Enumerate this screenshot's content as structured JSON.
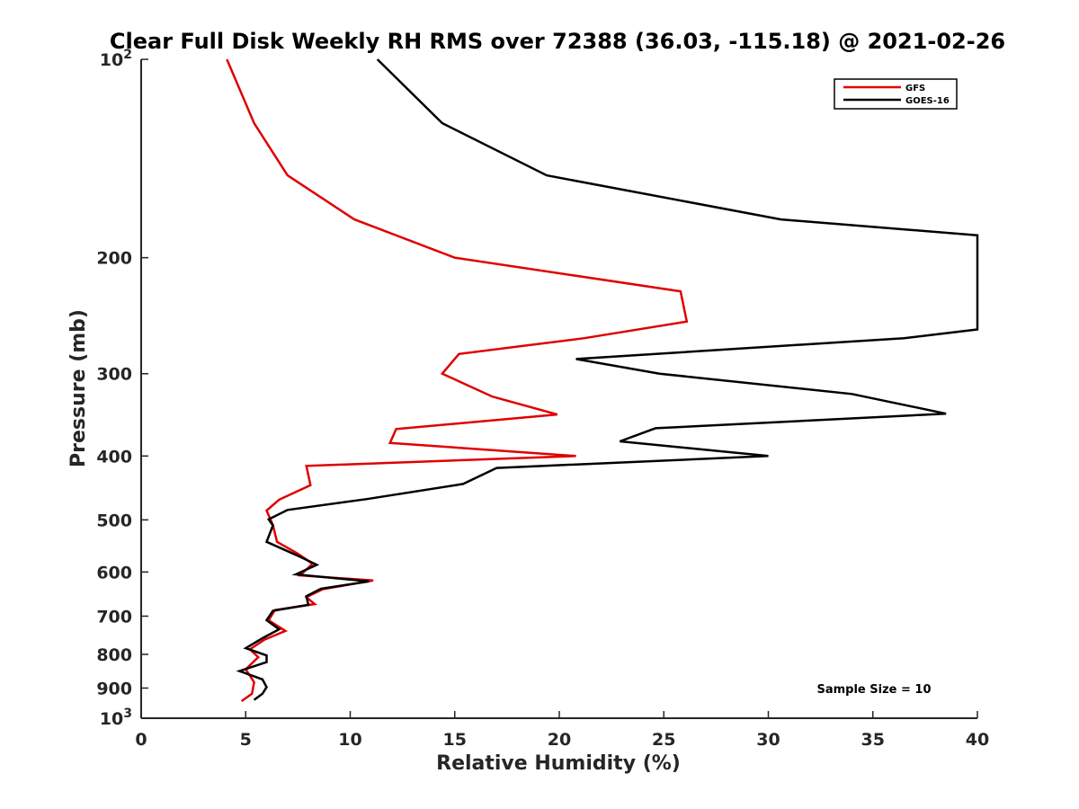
{
  "chart_data": {
    "type": "line",
    "title": "Clear Full Disk Weekly RH RMS over 72388 (36.03, -115.18) @ 2021-02-26",
    "xlabel": "Relative Humidity (%)",
    "ylabel": "Pressure (mb)",
    "xlim": [
      0,
      40
    ],
    "ylim": [
      100,
      1000
    ],
    "y_scale": "log",
    "y_reversed": true,
    "grid": false,
    "legend_position": "top-right",
    "annotation": "Sample Size = 10",
    "x_ticks": [
      {
        "value": 0,
        "label": "0"
      },
      {
        "value": 5,
        "label": "5"
      },
      {
        "value": 10,
        "label": "10"
      },
      {
        "value": 15,
        "label": "15"
      },
      {
        "value": 20,
        "label": "20"
      },
      {
        "value": 25,
        "label": "25"
      },
      {
        "value": 30,
        "label": "30"
      },
      {
        "value": 35,
        "label": "35"
      },
      {
        "value": 40,
        "label": "40"
      }
    ],
    "y_ticks": [
      {
        "value": 100,
        "label": "10",
        "sup": "2"
      },
      {
        "value": 200,
        "label": "200",
        "sup": ""
      },
      {
        "value": 300,
        "label": "300",
        "sup": ""
      },
      {
        "value": 400,
        "label": "400",
        "sup": ""
      },
      {
        "value": 500,
        "label": "500",
        "sup": ""
      },
      {
        "value": 600,
        "label": "600",
        "sup": ""
      },
      {
        "value": 700,
        "label": "700",
        "sup": ""
      },
      {
        "value": 800,
        "label": "800",
        "sup": ""
      },
      {
        "value": 900,
        "label": "900",
        "sup": ""
      },
      {
        "value": 1000,
        "label": "10",
        "sup": "3"
      }
    ],
    "series": [
      {
        "name": "GFS",
        "color": "#e00000",
        "points": [
          {
            "x": 4.1,
            "p": 100
          },
          {
            "x": 5.4,
            "p": 125
          },
          {
            "x": 7.0,
            "p": 150
          },
          {
            "x": 10.2,
            "p": 175
          },
          {
            "x": 15.0,
            "p": 200
          },
          {
            "x": 25.8,
            "p": 225
          },
          {
            "x": 26.1,
            "p": 250
          },
          {
            "x": 21.2,
            "p": 265
          },
          {
            "x": 15.2,
            "p": 280
          },
          {
            "x": 14.4,
            "p": 300
          },
          {
            "x": 16.8,
            "p": 325
          },
          {
            "x": 19.9,
            "p": 346
          },
          {
            "x": 12.2,
            "p": 364
          },
          {
            "x": 11.9,
            "p": 382
          },
          {
            "x": 20.8,
            "p": 400
          },
          {
            "x": 7.9,
            "p": 414
          },
          {
            "x": 8.1,
            "p": 443
          },
          {
            "x": 6.6,
            "p": 466
          },
          {
            "x": 6.0,
            "p": 484
          },
          {
            "x": 6.3,
            "p": 509
          },
          {
            "x": 6.5,
            "p": 540
          },
          {
            "x": 7.5,
            "p": 563
          },
          {
            "x": 8.2,
            "p": 583
          },
          {
            "x": 7.6,
            "p": 607
          },
          {
            "x": 11.1,
            "p": 618
          },
          {
            "x": 8.7,
            "p": 637
          },
          {
            "x": 7.9,
            "p": 655
          },
          {
            "x": 8.3,
            "p": 671
          },
          {
            "x": 6.4,
            "p": 685
          },
          {
            "x": 6.1,
            "p": 710
          },
          {
            "x": 6.9,
            "p": 737
          },
          {
            "x": 5.9,
            "p": 760
          },
          {
            "x": 5.2,
            "p": 786
          },
          {
            "x": 5.6,
            "p": 808
          },
          {
            "x": 5.0,
            "p": 843
          },
          {
            "x": 5.4,
            "p": 882
          },
          {
            "x": 5.3,
            "p": 918
          },
          {
            "x": 4.8,
            "p": 942
          }
        ]
      },
      {
        "name": "GOES-16",
        "color": "#000000",
        "points": [
          {
            "x": 11.3,
            "p": 100
          },
          {
            "x": 14.4,
            "p": 125
          },
          {
            "x": 19.4,
            "p": 150
          },
          {
            "x": 30.6,
            "p": 175
          },
          {
            "x": 40.0,
            "p": 185
          },
          {
            "x": 40.0,
            "p": 257
          },
          {
            "x": 36.5,
            "p": 265
          },
          {
            "x": 20.8,
            "p": 285
          },
          {
            "x": 24.8,
            "p": 300
          },
          {
            "x": 34.0,
            "p": 322
          },
          {
            "x": 38.5,
            "p": 345
          },
          {
            "x": 24.6,
            "p": 363
          },
          {
            "x": 22.9,
            "p": 380
          },
          {
            "x": 30.0,
            "p": 400
          },
          {
            "x": 17.0,
            "p": 417
          },
          {
            "x": 15.4,
            "p": 441
          },
          {
            "x": 10.8,
            "p": 465
          },
          {
            "x": 7.0,
            "p": 483
          },
          {
            "x": 6.1,
            "p": 499
          },
          {
            "x": 6.3,
            "p": 510
          },
          {
            "x": 6.0,
            "p": 540
          },
          {
            "x": 7.4,
            "p": 565
          },
          {
            "x": 8.4,
            "p": 585
          },
          {
            "x": 7.4,
            "p": 605
          },
          {
            "x": 10.9,
            "p": 620
          },
          {
            "x": 8.6,
            "p": 636
          },
          {
            "x": 7.9,
            "p": 653
          },
          {
            "x": 8.0,
            "p": 673
          },
          {
            "x": 6.3,
            "p": 687
          },
          {
            "x": 6.0,
            "p": 710
          },
          {
            "x": 6.6,
            "p": 733
          },
          {
            "x": 5.8,
            "p": 756
          },
          {
            "x": 5.0,
            "p": 783
          },
          {
            "x": 6.0,
            "p": 803
          },
          {
            "x": 6.0,
            "p": 822
          },
          {
            "x": 4.7,
            "p": 848
          },
          {
            "x": 5.8,
            "p": 873
          },
          {
            "x": 6.0,
            "p": 897
          },
          {
            "x": 5.8,
            "p": 918
          },
          {
            "x": 5.4,
            "p": 938
          }
        ]
      }
    ]
  }
}
